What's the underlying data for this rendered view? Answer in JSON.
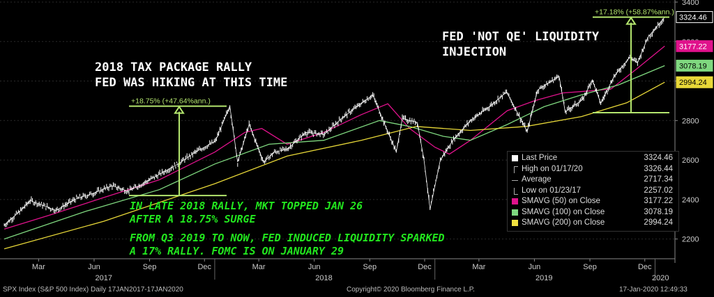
{
  "chart_data": {
    "type": "line",
    "ylim": [
      2100,
      3400
    ],
    "y_ticks": [
      2200,
      2400,
      2600,
      2800,
      3000,
      3200,
      3400
    ],
    "x_month_labels": [
      "Mar",
      "Jun",
      "Sep",
      "Dec",
      "Mar",
      "Jun",
      "Sep",
      "Dec",
      "Mar",
      "Jun",
      "Sep",
      "Dec"
    ],
    "x_year_labels": [
      "2017",
      "2018",
      "2019",
      "2020"
    ],
    "price_dates": [
      "2017-01-17",
      "2017-02-15",
      "2017-03-01",
      "2017-04-13",
      "2017-05-15",
      "2017-06-15",
      "2017-07-15",
      "2017-08-10",
      "2017-09-01",
      "2017-10-02",
      "2017-11-01",
      "2017-12-01",
      "2018-01-02",
      "2018-01-26",
      "2018-02-08",
      "2018-02-27",
      "2018-03-23",
      "2018-04-10",
      "2018-05-01",
      "2018-06-01",
      "2018-07-02",
      "2018-08-01",
      "2018-09-20",
      "2018-10-10",
      "2018-10-29",
      "2018-11-08",
      "2018-12-03",
      "2018-12-14",
      "2018-12-24",
      "2019-01-10",
      "2019-02-01",
      "2019-03-01",
      "2019-04-01",
      "2019-04-30",
      "2019-06-03",
      "2019-06-20",
      "2019-07-26",
      "2019-08-05",
      "2019-09-03",
      "2019-09-19",
      "2019-10-03",
      "2019-10-25",
      "2019-11-20",
      "2019-12-03",
      "2019-12-20",
      "2020-01-17"
    ],
    "price_values": [
      2270,
      2349,
      2395,
      2345,
      2402,
      2433,
      2470,
      2442,
      2476,
      2529,
      2580,
      2642,
      2695,
      2873,
      2590,
      2780,
      2590,
      2640,
      2655,
      2740,
      2730,
      2816,
      2930,
      2780,
      2641,
      2810,
      2790,
      2600,
      2351,
      2600,
      2705,
      2800,
      2870,
      2945,
      2744,
      2954,
      3025,
      2844,
      2906,
      3006,
      2887,
      3023,
      3120,
      3093,
      3221,
      3324
    ],
    "series": [
      {
        "name": "SMAVG (50)",
        "dates": [
          "2017-01-17",
          "2017-04-01",
          "2017-07-01",
          "2017-10-01",
          "2018-01-01",
          "2018-02-20",
          "2018-03-20",
          "2018-05-01",
          "2018-07-01",
          "2018-09-01",
          "2018-10-15",
          "2018-11-20",
          "2019-01-01",
          "2019-01-25",
          "2019-03-01",
          "2019-05-01",
          "2019-06-15",
          "2019-08-01",
          "2019-09-15",
          "2019-10-20",
          "2019-12-01",
          "2020-01-17"
        ],
        "values": [
          2250,
          2320,
          2410,
          2500,
          2640,
          2740,
          2760,
          2680,
          2740,
          2830,
          2885,
          2760,
          2665,
          2630,
          2700,
          2850,
          2900,
          2940,
          2950,
          2960,
          3060,
          3177
        ]
      },
      {
        "name": "SMAVG (100)",
        "dates": [
          "2017-01-17",
          "2017-06-01",
          "2017-10-01",
          "2018-01-01",
          "2018-04-01",
          "2018-07-01",
          "2018-10-01",
          "2018-11-20",
          "2019-01-15",
          "2019-03-01",
          "2019-05-01",
          "2019-07-01",
          "2019-09-01",
          "2019-11-01",
          "2020-01-17"
        ],
        "values": [
          2200,
          2340,
          2450,
          2580,
          2680,
          2700,
          2800,
          2770,
          2720,
          2700,
          2780,
          2870,
          2930,
          2980,
          3078
        ]
      },
      {
        "name": "SMAVG (200)",
        "dates": [
          "2017-01-17",
          "2017-07-01",
          "2018-01-01",
          "2018-05-01",
          "2018-09-01",
          "2018-12-01",
          "2019-03-01",
          "2019-06-01",
          "2019-09-01",
          "2019-11-15",
          "2020-01-17"
        ],
        "values": [
          2150,
          2290,
          2480,
          2620,
          2700,
          2770,
          2750,
          2770,
          2820,
          2890,
          2994
        ]
      }
    ],
    "rally1": {
      "label": "+18.75% (+47.64%ann.)",
      "low": 2420,
      "high": 2873
    },
    "rally2": {
      "label": "+17.18% (+58.87%ann.)",
      "low": 2840,
      "high": 3324
    },
    "right_tags": {
      "last": "3324.46",
      "sma50": "3177.22",
      "sma100": "3078.19",
      "sma200": "2994.24"
    }
  },
  "annotations": {
    "tax_line1": "2018 TAX PACKAGE RALLY",
    "tax_line2": "FED WAS HIKING AT THIS TIME",
    "fed_line1": "FED 'NOT QE' LIQUIDITY",
    "fed_line2": "INJECTION",
    "green_line1": "IN LATE 2018 RALLY, MKT TOPPED JAN 26",
    "green_line2": "AFTER A 18.75% SURGE",
    "green_line3": "FROM Q3 2019 TO NOW, FED INDUCED LIQUIDITY SPARKED",
    "green_line4": "A 17% RALLY.  FOMC IS ON JANUARY 29"
  },
  "legend": {
    "rows": [
      {
        "label": "Last Price",
        "value": "3324.46",
        "color": "#ffffff",
        "sym": "square"
      },
      {
        "label": "High on 01/17/20",
        "value": "3326.44",
        "color": "#aaaaaa",
        "sym": "high"
      },
      {
        "label": "Average",
        "value": "2717.34",
        "color": "#aaaaaa",
        "sym": "avg"
      },
      {
        "label": "Low on 01/23/17",
        "value": "2257.02",
        "color": "#aaaaaa",
        "sym": "low"
      },
      {
        "label": "SMAVG (50)   on Close",
        "value": "3177.22",
        "color": "#e0128c",
        "sym": "square"
      },
      {
        "label": "SMAVG (100)  on Close",
        "value": "3078.19",
        "color": "#7fd87f",
        "sym": "square"
      },
      {
        "label": "SMAVG (200)  on Close",
        "value": "2994.24",
        "color": "#f0e040",
        "sym": "square"
      }
    ]
  },
  "footer": {
    "left": "SPX Index (S&P 500 Index)  Daily 17JAN2017-17JAN2020",
    "center": "Copyright© 2020 Bloomberg Finance L.P.",
    "right": "17-Jan-2020 12:49:33"
  },
  "colors": {
    "price": "#ffffff",
    "sma50": "#e0128c",
    "sma100": "#7fd87f",
    "sma200": "#e8d838",
    "rally": "#b4e66e",
    "annotation_green": "#22e61e"
  }
}
